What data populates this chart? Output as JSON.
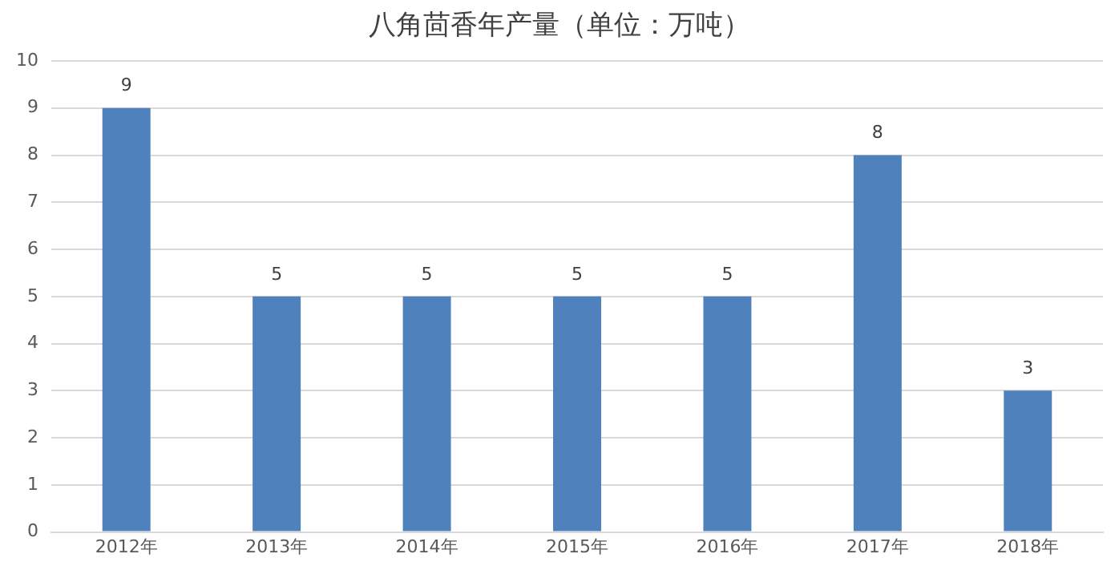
{
  "chart_data": {
    "type": "bar",
    "title": "八角茴香年产量（单位：万吨）",
    "categories": [
      "2012年",
      "2013年",
      "2014年",
      "2015年",
      "2016年",
      "2017年",
      "2018年"
    ],
    "values": [
      9,
      5,
      5,
      5,
      5,
      8,
      3
    ],
    "color": "#4f81bd",
    "ylim": [
      0,
      10
    ],
    "yticks": [
      0,
      1,
      2,
      3,
      4,
      5,
      6,
      7,
      8,
      9,
      10
    ],
    "grid": "y",
    "data_labels": true,
    "legend": false
  }
}
